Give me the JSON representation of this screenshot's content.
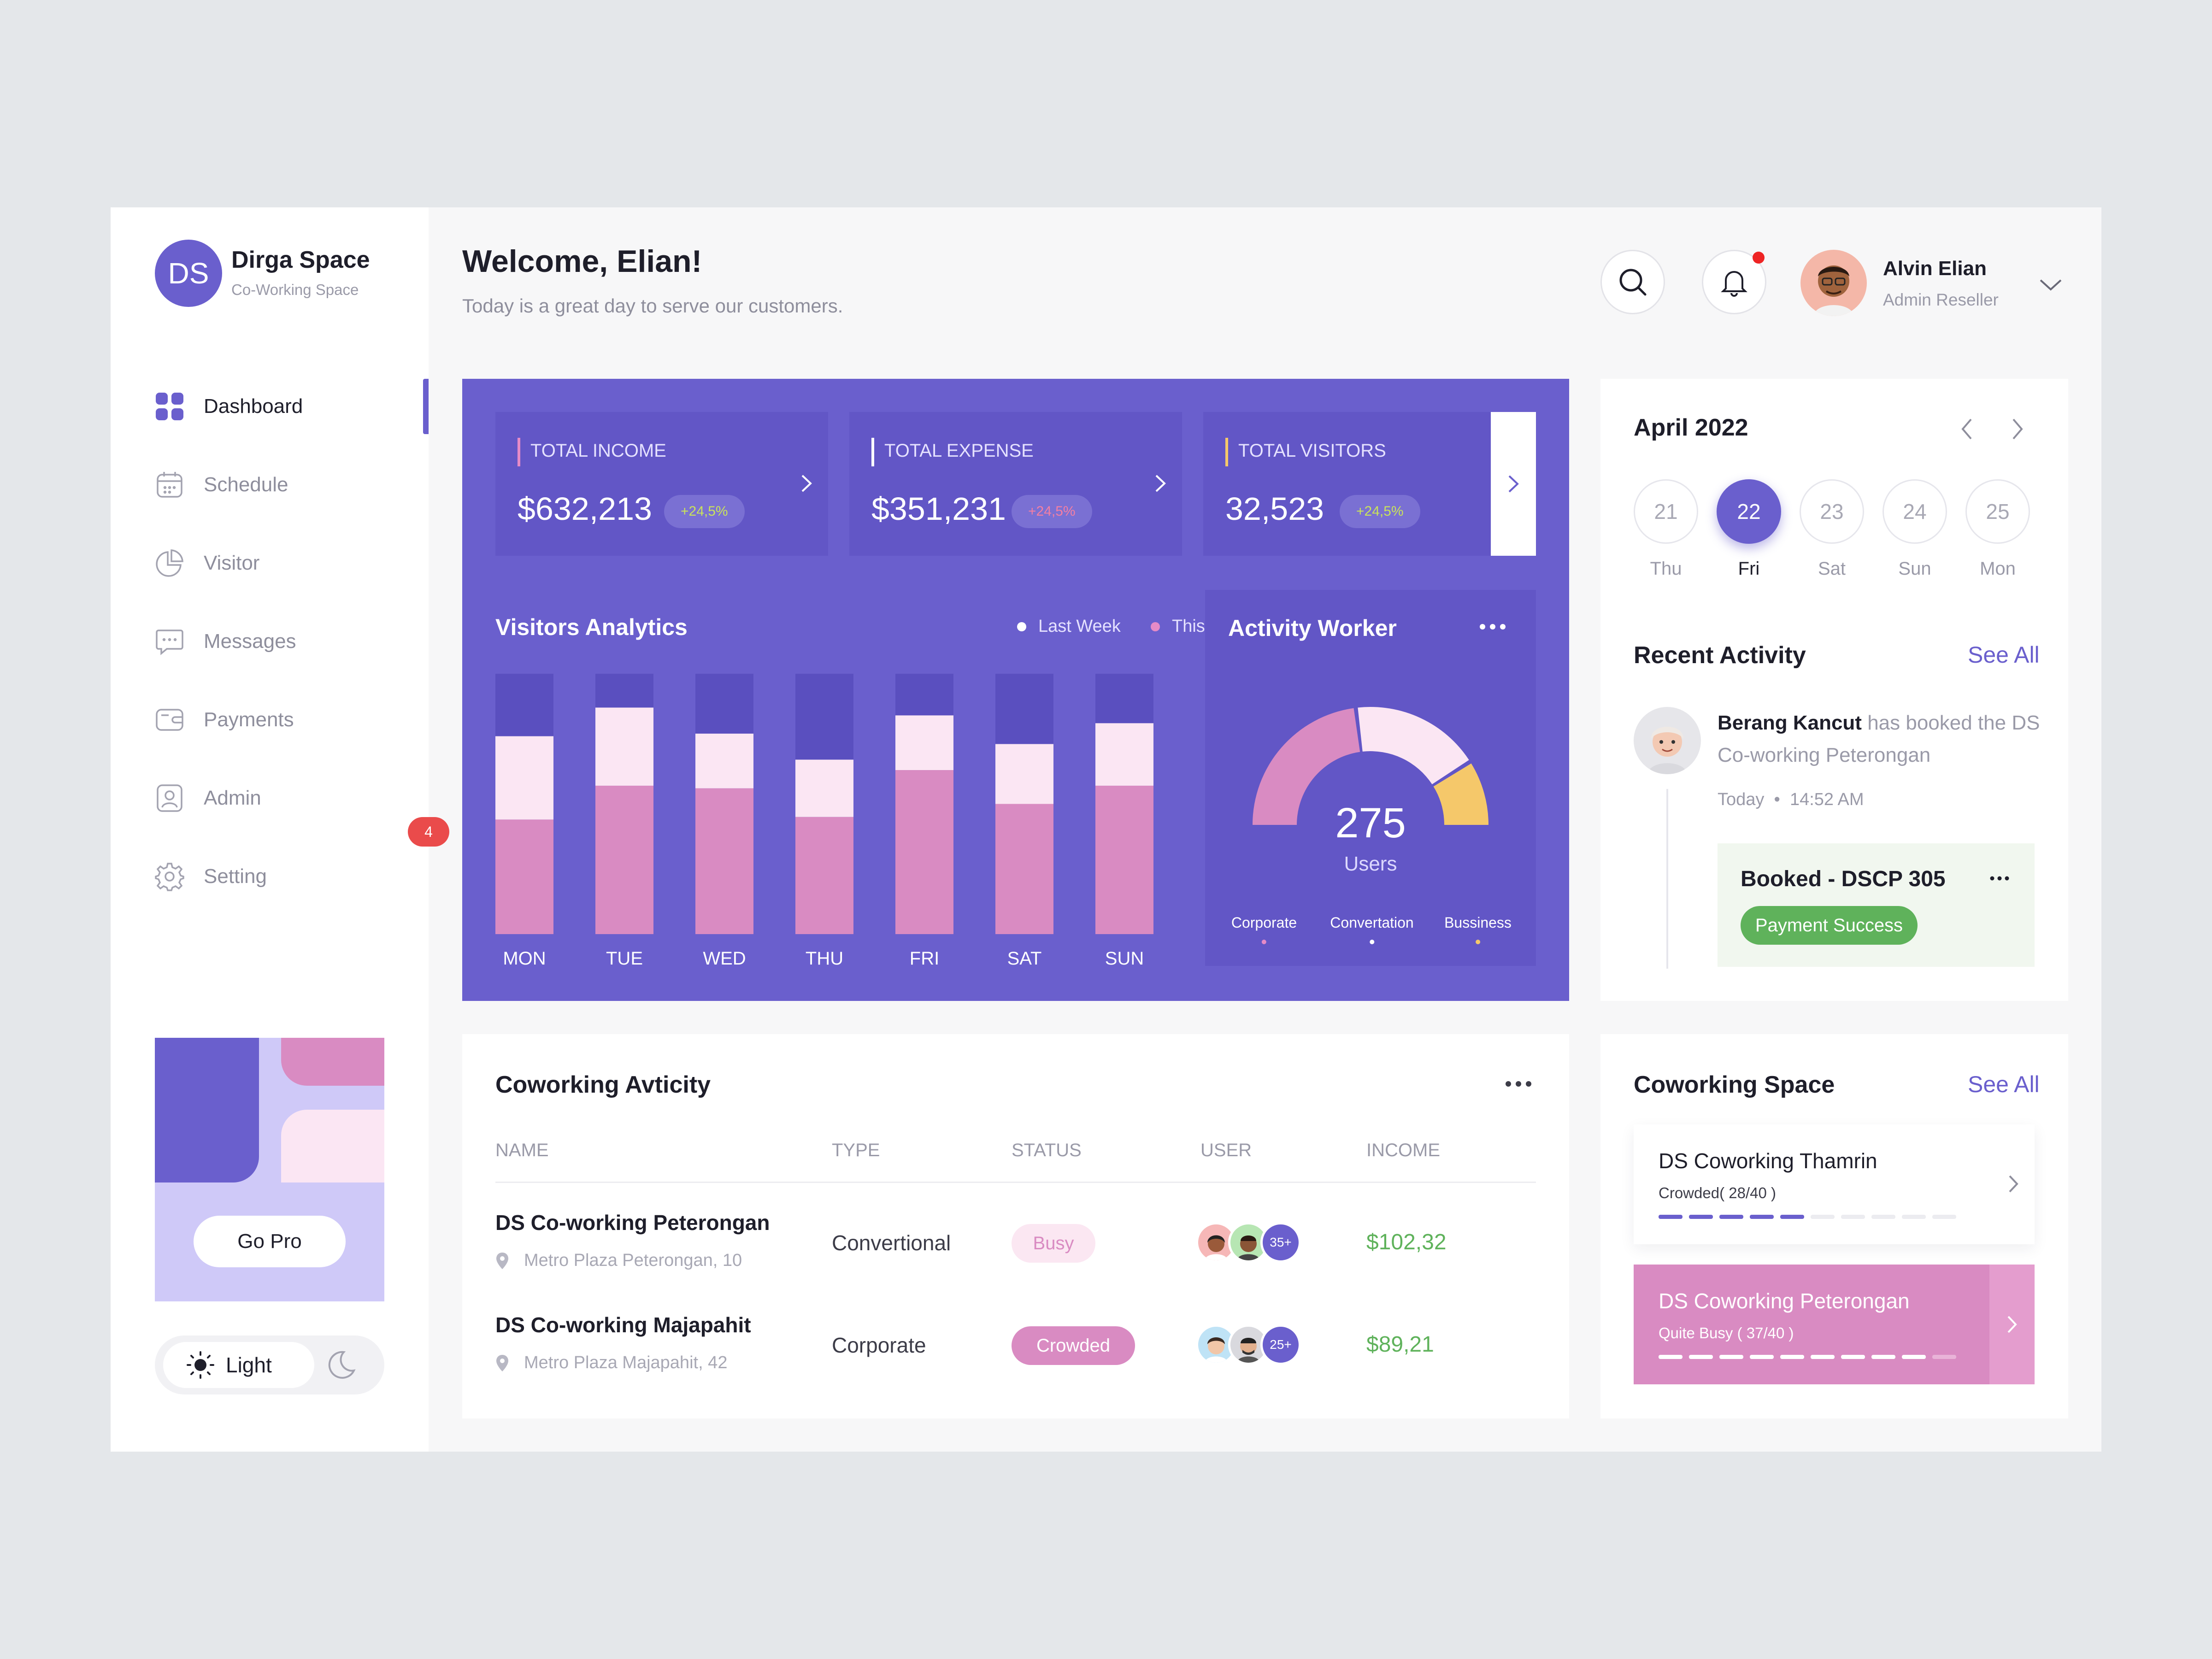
{
  "brand": {
    "logo_text": "DS",
    "title": "Dirga Space",
    "subtitle": "Co-Working Space"
  },
  "sidebar": {
    "items": [
      {
        "label": "Dashboard",
        "icon": "dashboard-grid-icon",
        "active": true
      },
      {
        "label": "Schedule",
        "icon": "calendar-icon"
      },
      {
        "label": "Visitor",
        "icon": "pie-chart-icon"
      },
      {
        "label": "Messages",
        "icon": "chat-icon",
        "badge": "4"
      },
      {
        "label": "Payments",
        "icon": "wallet-icon"
      },
      {
        "label": "Admin",
        "icon": "admin-user-icon"
      },
      {
        "label": "Setting",
        "icon": "gear-icon"
      }
    ],
    "promo": {
      "button": "Go Pro"
    },
    "theme": {
      "light_label": "Light",
      "current": "light"
    }
  },
  "header": {
    "welcome": "Welcome, Elian!",
    "subtitle": "Today is a great day to serve our customers.",
    "user": {
      "name": "Alvin Elian",
      "role": "Admin Reseller"
    },
    "notification_dot": true
  },
  "stats": [
    {
      "label": "TOTAL INCOME",
      "value": "$632,213",
      "change": "+24,5%",
      "change_color": "#c9e35a",
      "accent": "#e68bc7"
    },
    {
      "label": "TOTAL EXPENSE",
      "value": "$351,231",
      "change": "+24,5%",
      "change_color": "#f47fa3",
      "accent": "#ffffff"
    },
    {
      "label": "TOTAL VISITORS",
      "value": "32,523",
      "change": "+24,5%",
      "change_color": "#c9e35a",
      "accent": "#f5c86a"
    }
  ],
  "visitors_analytics": {
    "title": "Visitors Analytics",
    "legend": [
      "Last Week",
      "This Week"
    ]
  },
  "chart_data": {
    "type": "bar",
    "stacked": true,
    "categories": [
      "MON",
      "TUE",
      "WED",
      "THU",
      "FRI",
      "SAT",
      "SUN"
    ],
    "series": [
      {
        "name": "This Week",
        "values": [
          44,
          57,
          56,
          45,
          63,
          50,
          57
        ],
        "color": "#d98bc2"
      },
      {
        "name": "Last Week",
        "values": [
          32,
          30,
          21,
          22,
          21,
          23,
          24
        ],
        "color": "#fbe6f3"
      }
    ],
    "max": 100,
    "track_color": "#5a4fbf",
    "legend_placement": "top-right"
  },
  "activity_worker": {
    "title": "Activity Worker",
    "total": "275",
    "unit": "Users",
    "segments": [
      {
        "name": "Corporate",
        "share": 0.46,
        "color": "#d98bc2"
      },
      {
        "name": "Convertation",
        "share": 0.36,
        "color": "#fbe6f3"
      },
      {
        "name": "Bussiness",
        "share": 0.18,
        "color": "#f5c86a"
      }
    ]
  },
  "calendar": {
    "title": "April 2022",
    "days": [
      {
        "num": "21",
        "name": "Thu"
      },
      {
        "num": "22",
        "name": "Fri",
        "active": true
      },
      {
        "num": "23",
        "name": "Sat"
      },
      {
        "num": "24",
        "name": "Sun"
      },
      {
        "num": "25",
        "name": "Mon"
      }
    ]
  },
  "recent_activity": {
    "title": "Recent Activity",
    "see_all": "See All",
    "item": {
      "user": "Berang Kancut",
      "text": "has booked the DS Co-working Peterongan",
      "date": "Today",
      "time": "14:52 AM",
      "booking_title": "Booked - DSCP 305",
      "status": "Payment Success"
    }
  },
  "coworking_activity": {
    "title": "Coworking Avticity",
    "columns": [
      "NAME",
      "TYPE",
      "STATUS",
      "USER",
      "INCOME"
    ],
    "rows": [
      {
        "name": "DS Co-working Peterongan",
        "address": "Metro Plaza Peterongan, 10",
        "type": "Convertional",
        "status": "Busy",
        "users_extra": "35+",
        "income": "$102,32"
      },
      {
        "name": "DS Co-working Majapahit",
        "address": "Metro Plaza Majapahit, 42",
        "type": "Corporate",
        "status": "Crowded",
        "users_extra": "25+",
        "income": "$89,21"
      }
    ]
  },
  "coworking_space": {
    "title": "Coworking Space",
    "see_all": "See All",
    "items": [
      {
        "name": "DS Coworking Thamrin",
        "status": "Crowded( 28/40 )",
        "filled": 5,
        "total": 10
      },
      {
        "name": "DS Coworking Peterongan",
        "status": "Quite Busy ( 37/40 )",
        "filled": 9,
        "total": 10
      }
    ]
  }
}
